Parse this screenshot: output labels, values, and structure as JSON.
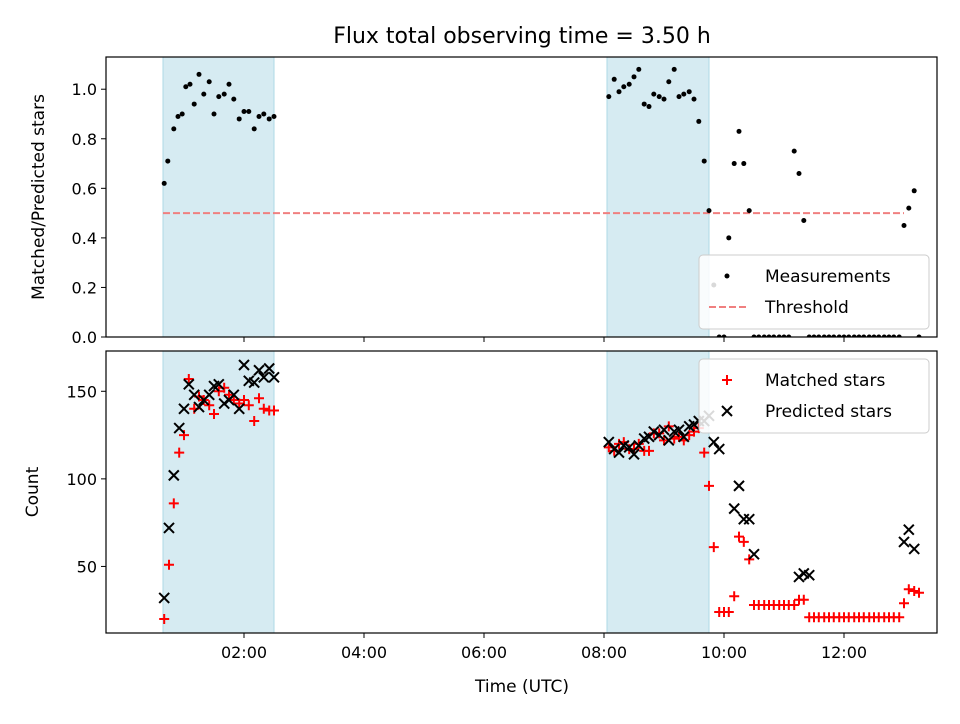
{
  "chart_data": {
    "title": "Flux total observing time = 3.50 h",
    "xlabel": "Time (UTC)",
    "x_units": "hours (UTC)",
    "xlim": [
      -0.3,
      13.55
    ],
    "x_ticks": [
      2,
      4,
      6,
      8,
      10,
      12
    ],
    "x_tick_labels": [
      "02:00",
      "04:00",
      "06:00",
      "08:00",
      "10:00",
      "12:00"
    ],
    "shaded_intervals": [
      [
        0.65,
        2.5
      ],
      [
        8.05,
        9.75
      ]
    ],
    "shade_color": "#add8e6",
    "panels": [
      {
        "type": "scatter",
        "ylabel": "Matched/Predicted stars",
        "ylim": [
          0,
          1.13
        ],
        "y_ticks": [
          0.0,
          0.2,
          0.4,
          0.6,
          0.8,
          1.0
        ],
        "y_tick_labels": [
          "0.0",
          "0.2",
          "0.4",
          "0.6",
          "0.8",
          "1.0"
        ],
        "legend_position": "lower-right",
        "threshold": {
          "name": "Threshold",
          "y": 0.5,
          "x_range": [
            0.65,
            13.0
          ],
          "color": "#f08080"
        },
        "series": [
          {
            "name": "Measurements",
            "marker": "dot",
            "color": "#000000",
            "x": [
              0.67,
              0.73,
              0.83,
              0.9,
              0.97,
              1.03,
              1.1,
              1.17,
              1.25,
              1.33,
              1.42,
              1.5,
              1.58,
              1.67,
              1.75,
              1.83,
              1.92,
              2.0,
              2.08,
              2.17,
              2.25,
              2.33,
              2.42,
              2.5,
              8.08,
              8.17,
              8.25,
              8.33,
              8.42,
              8.5,
              8.58,
              8.67,
              8.75,
              8.83,
              8.92,
              9.0,
              9.08,
              9.17,
              9.25,
              9.33,
              9.42,
              9.5,
              9.58,
              9.67,
              9.75,
              9.83,
              9.92,
              10.0,
              10.08,
              10.17,
              10.25,
              10.33,
              10.42,
              10.5,
              10.58,
              10.67,
              10.75,
              10.83,
              10.92,
              11.0,
              11.08,
              11.17,
              11.25,
              11.33,
              11.42,
              11.5,
              11.58,
              11.67,
              11.75,
              11.83,
              11.92,
              12.0,
              12.08,
              12.17,
              12.25,
              12.33,
              12.42,
              12.5,
              12.58,
              12.67,
              12.75,
              12.83,
              12.92,
              13.0,
              13.08,
              13.17,
              13.25
            ],
            "y": [
              0.62,
              0.71,
              0.84,
              0.89,
              0.9,
              1.01,
              1.02,
              0.94,
              1.06,
              0.98,
              1.03,
              0.9,
              0.97,
              0.98,
              1.02,
              0.96,
              0.88,
              0.91,
              0.91,
              0.84,
              0.89,
              0.9,
              0.88,
              0.89,
              0.97,
              1.04,
              0.99,
              1.01,
              1.02,
              1.05,
              1.08,
              0.94,
              0.93,
              0.98,
              0.97,
              0.96,
              1.03,
              1.08,
              0.97,
              0.98,
              0.99,
              0.96,
              0.87,
              0.71,
              0.51,
              0.21,
              0.0,
              0.0,
              0.4,
              0.7,
              0.83,
              0.7,
              0.51,
              0.0,
              0.0,
              0.0,
              0.0,
              0.0,
              0.0,
              0.0,
              0.0,
              0.75,
              0.66,
              0.47,
              0.0,
              0.0,
              0.0,
              0.0,
              0.0,
              0.0,
              0.0,
              0.0,
              0.0,
              0.0,
              0.0,
              0.0,
              0.0,
              0.0,
              0.0,
              0.0,
              0.0,
              0.0,
              0.0,
              0.45,
              0.52,
              0.59,
              0.0
            ]
          }
        ]
      },
      {
        "type": "scatter",
        "ylabel": "Count",
        "ylim": [
          12,
          173
        ],
        "y_ticks": [
          50,
          100,
          150
        ],
        "y_tick_labels": [
          "50",
          "100",
          "150"
        ],
        "legend_position": "upper-right",
        "series": [
          {
            "name": "Matched stars",
            "marker": "plus",
            "color": "#ff0000",
            "x": [
              0.67,
              0.75,
              0.83,
              0.92,
              1.0,
              1.08,
              1.17,
              1.25,
              1.33,
              1.42,
              1.5,
              1.58,
              1.67,
              1.75,
              1.83,
              1.92,
              2.0,
              2.08,
              2.17,
              2.25,
              2.33,
              2.42,
              2.5,
              8.08,
              8.17,
              8.25,
              8.33,
              8.42,
              8.5,
              8.58,
              8.67,
              8.75,
              8.83,
              8.92,
              9.0,
              9.08,
              9.17,
              9.25,
              9.33,
              9.42,
              9.5,
              9.58,
              9.67,
              9.75,
              9.83,
              9.92,
              10.0,
              10.08,
              10.17,
              10.25,
              10.33,
              10.42,
              10.5,
              10.58,
              10.67,
              10.75,
              10.83,
              10.92,
              11.0,
              11.08,
              11.17,
              11.25,
              11.33,
              11.42,
              11.5,
              11.58,
              11.67,
              11.75,
              11.83,
              11.92,
              12.0,
              12.08,
              12.17,
              12.25,
              12.33,
              12.42,
              12.5,
              12.58,
              12.67,
              12.75,
              12.83,
              12.92,
              13.0,
              13.08,
              13.17,
              13.25
            ],
            "y": [
              20,
              51,
              86,
              115,
              125,
              157,
              140,
              147,
              145,
              142,
              137,
              150,
              152,
              148,
              145,
              143,
              145,
              142,
              133,
              146,
              140,
              139,
              139,
              118,
              116,
              120,
              121,
              117,
              117,
              120,
              116,
              116,
              126,
              126,
              122,
              130,
              123,
              124,
              122,
              125,
              127,
              129,
              115,
              96,
              61,
              24,
              24,
              24,
              33,
              67,
              64,
              54,
              28,
              28,
              28,
              28,
              28,
              28,
              28,
              28,
              28,
              31,
              31,
              21,
              21,
              21,
              21,
              21,
              21,
              21,
              21,
              21,
              21,
              21,
              21,
              21,
              21,
              21,
              21,
              21,
              21,
              21,
              29,
              37,
              36,
              35
            ]
          },
          {
            "name": "Predicted stars",
            "marker": "cross",
            "color": "#000000",
            "x": [
              0.67,
              0.75,
              0.83,
              0.92,
              1.0,
              1.08,
              1.17,
              1.25,
              1.33,
              1.42,
              1.5,
              1.58,
              1.67,
              1.75,
              1.83,
              1.92,
              2.0,
              2.08,
              2.17,
              2.25,
              2.33,
              2.42,
              2.5,
              8.08,
              8.17,
              8.25,
              8.33,
              8.42,
              8.5,
              8.58,
              8.67,
              8.75,
              8.83,
              8.92,
              9.0,
              9.08,
              9.17,
              9.25,
              9.33,
              9.42,
              9.5,
              9.58,
              9.67,
              9.75,
              9.83,
              9.92,
              10.17,
              10.25,
              10.33,
              10.42,
              10.5,
              11.25,
              11.33,
              11.42,
              13.0,
              13.08,
              13.17
            ],
            "y": [
              32,
              72,
              102,
              129,
              140,
              154,
              148,
              141,
              145,
              148,
              153,
              154,
              143,
              145,
              148,
              140,
              165,
              156,
              155,
              162,
              158,
              163,
              158,
              121,
              117,
              115,
              119,
              118,
              114,
              119,
              123,
              124,
              127,
              125,
              128,
              122,
              127,
              128,
              124,
              130,
              131,
              133,
              133,
              136,
              121,
              117,
              83,
              96,
              77,
              77,
              57,
              44,
              46,
              45,
              64,
              71,
              60
            ]
          }
        ]
      }
    ]
  }
}
